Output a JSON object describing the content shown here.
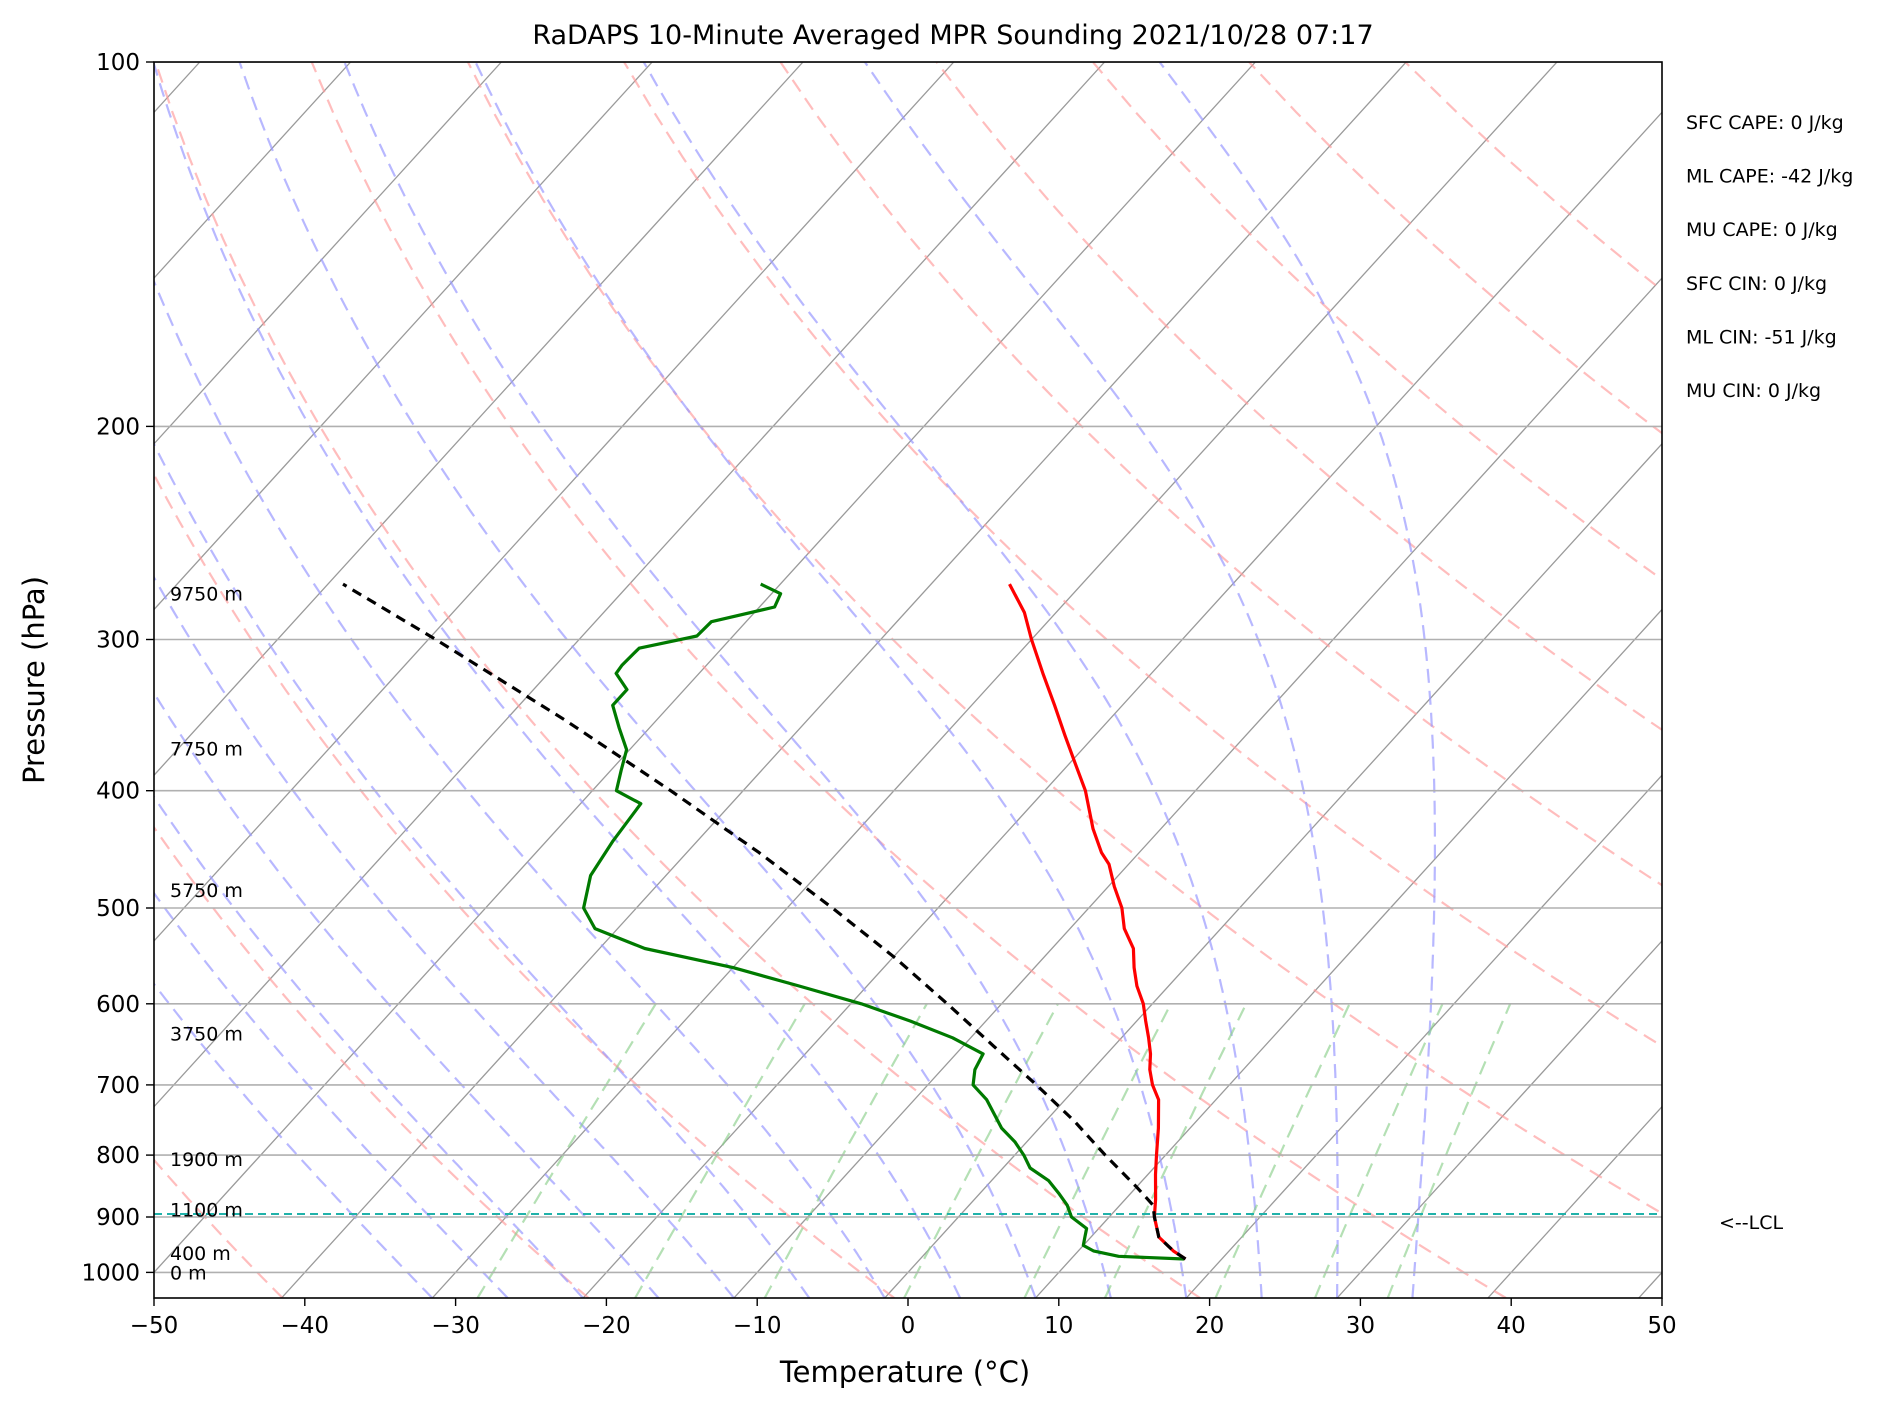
{
  "chart_data": {
    "type": "line",
    "subtype": "skew-t log-p sounding",
    "title": "RaDAPS 10-Minute Averaged MPR Sounding 2021/10/28 07:17",
    "xlabel": "Temperature (°C)",
    "ylabel": "Pressure (hPa)",
    "xlim": [
      -50,
      50
    ],
    "ylim": [
      1050,
      100
    ],
    "y_scale": "log",
    "x_ticks": [
      "−50",
      "−40",
      "−30",
      "−20",
      "−10",
      "0",
      "10",
      "20",
      "30",
      "40",
      "50"
    ],
    "y_ticks": [
      {
        "p": 100,
        "label": "100"
      },
      {
        "p": 200,
        "label": "200"
      },
      {
        "p": 300,
        "label": "300"
      },
      {
        "p": 400,
        "label": "400"
      },
      {
        "p": 500,
        "label": "500"
      },
      {
        "p": 600,
        "label": "600"
      },
      {
        "p": 700,
        "label": "700"
      },
      {
        "p": 800,
        "label": "800"
      },
      {
        "p": 900,
        "label": "900"
      },
      {
        "p": 1000,
        "label": "1000"
      }
    ],
    "grid": true,
    "height_labels": [
      {
        "p": 275,
        "label": "9750 m"
      },
      {
        "p": 369,
        "label": "7750 m"
      },
      {
        "p": 483,
        "label": "5750 m"
      },
      {
        "p": 635,
        "label": "3750 m"
      },
      {
        "p": 806,
        "label": "1900 m"
      },
      {
        "p": 887,
        "label": "1100 m"
      },
      {
        "p": 964,
        "label": "400 m"
      },
      {
        "p": 1000,
        "label": "0 m"
      }
    ],
    "indices": [
      {
        "label": "SFC CAPE: 0 J/kg"
      },
      {
        "label": "ML CAPE: -42 J/kg"
      },
      {
        "label": "MU CAPE: 0 J/kg"
      },
      {
        "label": "SFC CIN: 0 J/kg"
      },
      {
        "label": "ML CIN: -51 J/kg"
      },
      {
        "label": "MU CIN: 0 J/kg"
      }
    ],
    "lcl": {
      "p": 895,
      "label": "<--LCL",
      "color": "#20b2aa"
    },
    "series": [
      {
        "key": "temperature",
        "color": "#ff0000",
        "points": [
          [
            975,
            17.6
          ],
          [
            960,
            16.3
          ],
          [
            935,
            14.5
          ],
          [
            900,
            13.0
          ],
          [
            870,
            12.0
          ],
          [
            830,
            10.5
          ],
          [
            800,
            9.4
          ],
          [
            760,
            7.9
          ],
          [
            720,
            6.2
          ],
          [
            700,
            4.9
          ],
          [
            680,
            3.8
          ],
          [
            660,
            2.9
          ],
          [
            640,
            1.8
          ],
          [
            620,
            0.6
          ],
          [
            600,
            -0.6
          ],
          [
            580,
            -2.1
          ],
          [
            560,
            -3.4
          ],
          [
            540,
            -4.6
          ],
          [
            520,
            -6.4
          ],
          [
            500,
            -7.8
          ],
          [
            480,
            -9.6
          ],
          [
            460,
            -11.3
          ],
          [
            450,
            -12.5
          ],
          [
            430,
            -14.5
          ],
          [
            400,
            -17.3
          ],
          [
            380,
            -19.6
          ],
          [
            360,
            -22.0
          ],
          [
            340,
            -24.5
          ],
          [
            320,
            -27.2
          ],
          [
            300,
            -30.0
          ],
          [
            285,
            -32.1
          ],
          [
            270,
            -34.8
          ]
        ]
      },
      {
        "key": "dewpoint",
        "color": "#007a00",
        "points": [
          [
            975,
            17.5
          ],
          [
            970,
            13.0
          ],
          [
            960,
            11.0
          ],
          [
            950,
            10.0
          ],
          [
            935,
            9.6
          ],
          [
            920,
            9.2
          ],
          [
            900,
            7.5
          ],
          [
            880,
            6.5
          ],
          [
            860,
            5.2
          ],
          [
            840,
            3.8
          ],
          [
            820,
            1.8
          ],
          [
            800,
            0.6
          ],
          [
            780,
            -0.8
          ],
          [
            760,
            -2.5
          ],
          [
            720,
            -5.2
          ],
          [
            700,
            -7.0
          ],
          [
            680,
            -7.8
          ],
          [
            660,
            -8.2
          ],
          [
            640,
            -11.2
          ],
          [
            620,
            -15.0
          ],
          [
            600,
            -19.3
          ],
          [
            580,
            -24.5
          ],
          [
            560,
            -30.0
          ],
          [
            540,
            -37.0
          ],
          [
            520,
            -41.5
          ],
          [
            500,
            -43.5
          ],
          [
            470,
            -45.0
          ],
          [
            440,
            -45.6
          ],
          [
            410,
            -46.0
          ],
          [
            400,
            -48.4
          ],
          [
            385,
            -49.3
          ],
          [
            370,
            -50.2
          ],
          [
            355,
            -52.0
          ],
          [
            340,
            -53.8
          ],
          [
            330,
            -53.8
          ],
          [
            320,
            -55.5
          ],
          [
            315,
            -55.6
          ],
          [
            305,
            -55.5
          ],
          [
            298,
            -52.4
          ],
          [
            290,
            -52.3
          ],
          [
            282,
            -49.0
          ],
          [
            275,
            -49.4
          ],
          [
            270,
            -51.3
          ]
        ]
      },
      {
        "key": "parcel",
        "color": "#000000",
        "dashed": true,
        "points": [
          [
            975,
            17.6
          ],
          [
            960,
            16.3
          ],
          [
            935,
            14.5
          ],
          [
            900,
            13.0
          ],
          [
            880,
            12.2
          ],
          [
            850,
            10.0
          ],
          [
            800,
            6.0
          ],
          [
            750,
            1.9
          ],
          [
            700,
            -2.8
          ],
          [
            650,
            -8.0
          ],
          [
            600,
            -13.6
          ],
          [
            550,
            -19.8
          ],
          [
            500,
            -27.0
          ],
          [
            450,
            -35.2
          ],
          [
            400,
            -44.8
          ],
          [
            350,
            -56.0
          ],
          [
            300,
            -69.5
          ],
          [
            270,
            -79.0
          ]
        ]
      }
    ],
    "background": {
      "dry_adiabat_theta_k": [
        230,
        250,
        270,
        290,
        310,
        330,
        350,
        370,
        390,
        410,
        430,
        450
      ],
      "moist_adiabat_start_c": [
        -30,
        -25,
        -20,
        -15,
        -10,
        -5,
        0,
        5,
        10,
        15,
        20,
        25,
        30,
        35
      ],
      "mixing_ratio_gkg": [
        0.4,
        1,
        2,
        4,
        7,
        10,
        16,
        24,
        32
      ],
      "colors": {
        "dry": "#ff9a9a",
        "moist": "#9a9aff",
        "mixing": "#8ccf8c",
        "isotherm": "#9a9a9a",
        "grid": "#b0b0b0"
      }
    }
  }
}
